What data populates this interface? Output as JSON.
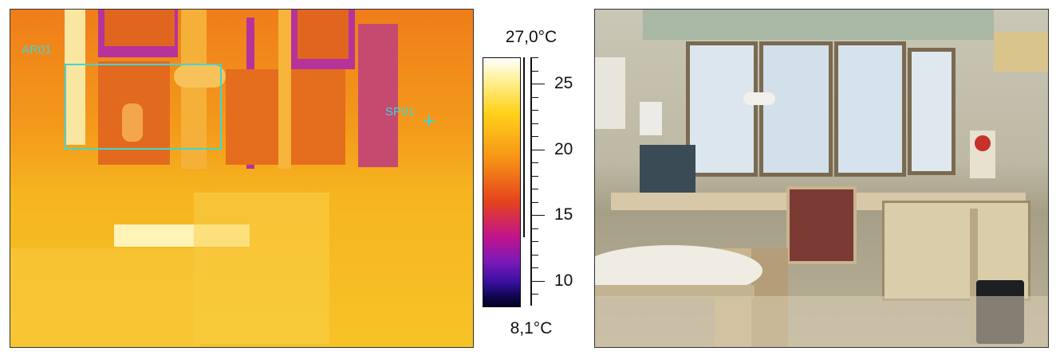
{
  "thermal_image": {
    "area_label": "AR01",
    "spot_label": "SP01"
  },
  "color_scale": {
    "max_label": "27,0°C",
    "min_label": "8,1°C",
    "range": [
      8.1,
      27.0
    ],
    "ticks": [
      "25",
      "20",
      "15",
      "10"
    ],
    "palette": [
      "#ffffff",
      "#ffd21a",
      "#f79516",
      "#e5421e",
      "#c0148c",
      "#3a10a0",
      "#050022"
    ]
  },
  "photo": {
    "description_icon": "office-room-photo"
  }
}
